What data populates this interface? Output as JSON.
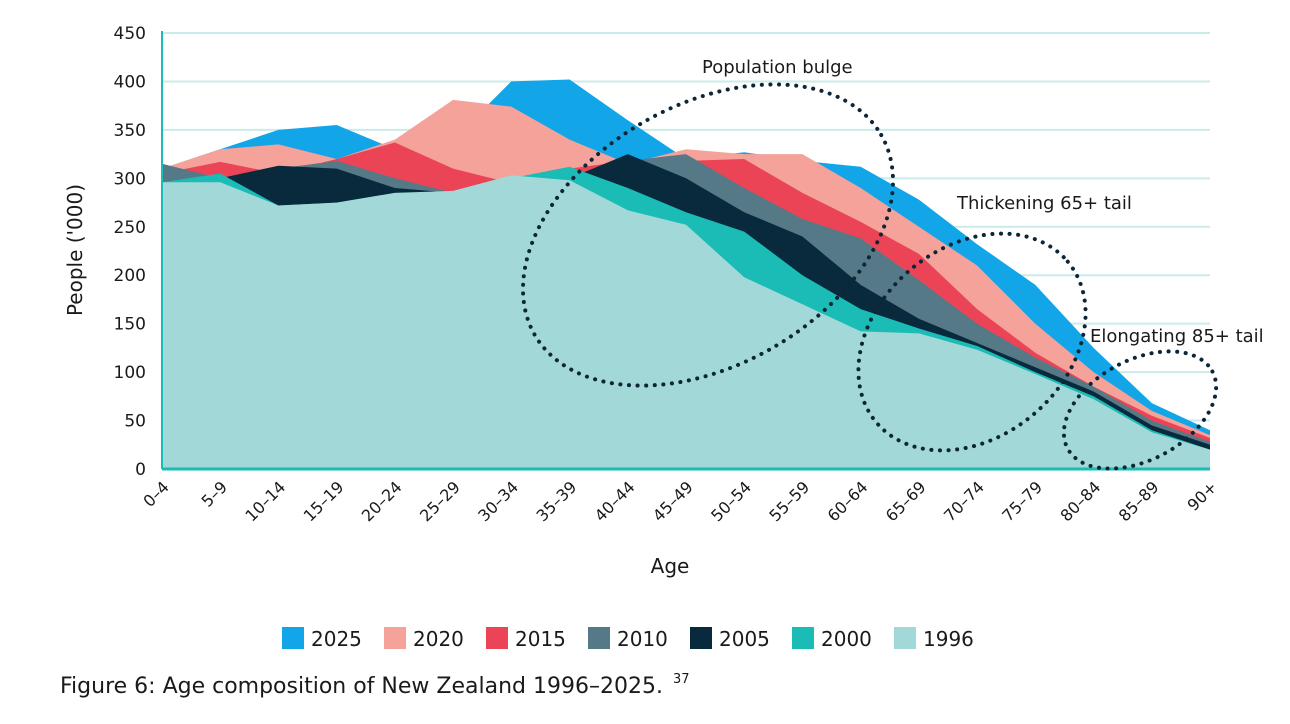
{
  "chart_data": {
    "type": "area",
    "title": "",
    "xlabel": "Age",
    "ylabel": "People ('000)",
    "ylim": [
      0,
      450
    ],
    "yticks": [
      0,
      50,
      100,
      150,
      200,
      250,
      300,
      350,
      400,
      450
    ],
    "grid": true,
    "legend_position": "bottom",
    "categories": [
      "0–4",
      "5–9",
      "10–14",
      "15–19",
      "20–24",
      "25–29",
      "30–34",
      "35–39",
      "40–44",
      "45–49",
      "50–54",
      "55–59",
      "60–64",
      "65–69",
      "70–74",
      "75–79",
      "80–84",
      "85–89",
      "90+"
    ],
    "series": [
      {
        "name": "2025",
        "color": "#12a6e8",
        "values": [
          310,
          330,
          350,
          355,
          330,
          340,
          400,
          402,
          360,
          320,
          327,
          318,
          312,
          278,
          232,
          190,
          125,
          68,
          40
        ]
      },
      {
        "name": "2020",
        "color": "#f4a29a",
        "values": [
          310,
          330,
          335,
          320,
          340,
          381,
          374,
          340,
          315,
          330,
          325,
          325,
          290,
          250,
          210,
          150,
          100,
          60,
          35
        ]
      },
      {
        "name": "2015",
        "color": "#eb4457",
        "values": [
          305,
          317,
          305,
          320,
          337,
          310,
          295,
          310,
          318,
          318,
          320,
          285,
          255,
          222,
          165,
          120,
          85,
          55,
          32
        ]
      },
      {
        "name": "2010",
        "color": "#567987",
        "values": [
          315,
          300,
          310,
          318,
          300,
          285,
          300,
          300,
          318,
          325,
          290,
          258,
          238,
          195,
          150,
          115,
          85,
          50,
          28
        ]
      },
      {
        "name": "2005",
        "color": "#082a3c",
        "values": [
          295,
          300,
          313,
          310,
          290,
          285,
          300,
          300,
          325,
          300,
          265,
          240,
          190,
          155,
          130,
          105,
          80,
          45,
          25
        ]
      },
      {
        "name": "2000",
        "color": "#1bbcb6",
        "values": [
          296,
          305,
          272,
          275,
          285,
          285,
          300,
          312,
          290,
          265,
          245,
          200,
          165,
          145,
          127,
          100,
          75,
          40,
          20
        ]
      },
      {
        "name": "1996",
        "color": "#a2d9d8",
        "values": [
          296,
          296,
          272,
          275,
          285,
          287,
          303,
          298,
          267,
          252,
          198,
          170,
          142,
          140,
          123,
          98,
          72,
          38,
          20
        ]
      }
    ],
    "annotations": [
      "Population bulge",
      "Thickening 65+ tail",
      "Elongating 85+  tail"
    ]
  },
  "caption": {
    "text": "Figure 6: Age composition of New Zealand 1996–2025.",
    "footnote": "37"
  }
}
